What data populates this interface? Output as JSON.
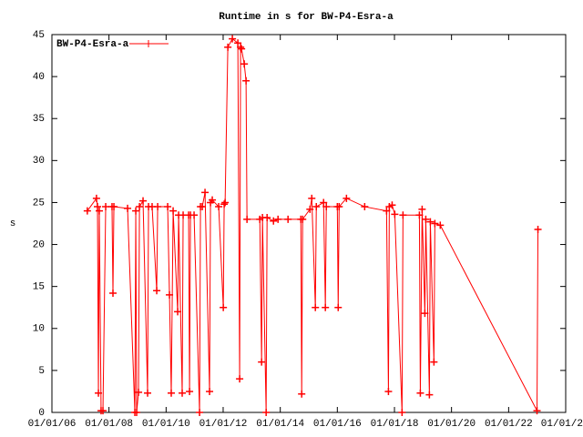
{
  "chart_data": {
    "type": "line",
    "title": "Runtime in s for BW-P4-Esra-a",
    "y_label": "s",
    "xlim": [
      "2006-01-01",
      "2024-01-01"
    ],
    "xticks": [
      {
        "value": "2006-01-01",
        "label": "01/01/06"
      },
      {
        "value": "2008-01-01",
        "label": "01/01/08"
      },
      {
        "value": "2010-01-01",
        "label": "01/01/10"
      },
      {
        "value": "2012-01-01",
        "label": "01/01/12"
      },
      {
        "value": "2014-01-01",
        "label": "01/01/14"
      },
      {
        "value": "2016-01-01",
        "label": "01/01/16"
      },
      {
        "value": "2018-01-01",
        "label": "01/01/18"
      },
      {
        "value": "2020-01-01",
        "label": "01/01/20"
      },
      {
        "value": "2022-01-01",
        "label": "01/01/22"
      },
      {
        "value": "2024-01-01",
        "label": "01/01/2"
      }
    ],
    "ylim": [
      0,
      45
    ],
    "yticks": [
      0,
      5,
      10,
      15,
      20,
      25,
      30,
      35,
      40,
      45
    ],
    "legend": "top-left",
    "x": [
      "2007-03-30",
      "2007-07-25",
      "2007-08-07",
      "2007-08-19",
      "2007-08-30",
      "2007-09-22",
      "2007-10-16",
      "2007-11-20",
      "2008-02-09",
      "2008-02-21",
      "2008-03-04",
      "2008-08-26",
      "2008-11-27",
      "2008-12-09",
      "2008-12-20",
      "2009-01-13",
      "2009-01-25",
      "2009-03-12",
      "2009-05-09",
      "2009-05-21",
      "2009-07-06",
      "2009-09-03",
      "2009-09-15",
      "2010-01-21",
      "2010-02-13",
      "2010-03-08",
      "2010-04-01",
      "2010-05-29",
      "2010-06-10",
      "2010-07-26",
      "2010-08-07",
      "2010-10-16",
      "2010-10-28",
      "2010-11-09",
      "2010-12-25",
      "2011-03-05",
      "2011-03-17",
      "2011-04-09",
      "2011-05-14",
      "2011-07-11",
      "2011-07-23",
      "2011-08-15",
      "2011-11-05",
      "2012-01-03",
      "2012-01-14",
      "2012-01-26",
      "2012-03-01",
      "2012-04-28",
      "2012-07-07",
      "2012-07-30",
      "2012-08-11",
      "2012-08-23",
      "2012-09-27",
      "2012-10-20",
      "2012-11-01",
      "2013-04-14",
      "2013-05-07",
      "2013-05-18",
      "2013-07-04",
      "2013-07-16",
      "2013-10-06",
      "2013-12-03",
      "2014-04-10",
      "2014-09-21",
      "2014-10-02",
      "2014-10-14",
      "2015-01-16",
      "2015-02-08",
      "2015-03-26",
      "2015-04-07",
      "2015-07-09",
      "2015-08-01",
      "2015-08-13",
      "2016-01-01",
      "2016-01-12",
      "2016-01-24",
      "2016-04-27",
      "2016-12-16",
      "2017-09-22",
      "2017-10-16",
      "2017-10-27",
      "2017-12-02",
      "2018-01-05",
      "2018-04-08",
      "2018-04-20",
      "2018-11-16",
      "2018-11-28",
      "2018-12-21",
      "2019-01-25",
      "2019-02-06",
      "2019-03-24",
      "2019-04-05",
      "2019-05-21",
      "2019-06-02",
      "2019-08-10",
      "2022-12-30",
      "2023-01-11"
    ],
    "series": [
      {
        "name": "BW-P4-Esra-a",
        "color": "#ff0000",
        "values": [
          24,
          25.5,
          24.5,
          2.3,
          24,
          0.2,
          0.2,
          24.5,
          24.5,
          14.2,
          24.5,
          24.3,
          0,
          24,
          0,
          2.4,
          24.5,
          25.2,
          2.3,
          24.5,
          24.5,
          14.5,
          24.5,
          24.5,
          14,
          2.3,
          24,
          12,
          23.5,
          2.3,
          23.5,
          23.5,
          2.5,
          23.5,
          23.5,
          0,
          24.5,
          24.5,
          26.2,
          2.5,
          25,
          25.3,
          24.5,
          12.5,
          24.8,
          25,
          43.5,
          44.5,
          44,
          4,
          43.5,
          43.3,
          41.5,
          39.5,
          23,
          23,
          6,
          23.2,
          0,
          23.2,
          22.8,
          23,
          23,
          23,
          2.2,
          23,
          24.2,
          25.5,
          12.5,
          24.5,
          25,
          12.5,
          24.5,
          24.5,
          12.5,
          24.5,
          25.5,
          24.5,
          24,
          2.5,
          24.5,
          24.7,
          23.6,
          0,
          23.5,
          23.5,
          2.3,
          24.2,
          11.8,
          23,
          2.1,
          22.7,
          6,
          22.5,
          22.3,
          0.2,
          21.8
        ]
      }
    ]
  }
}
